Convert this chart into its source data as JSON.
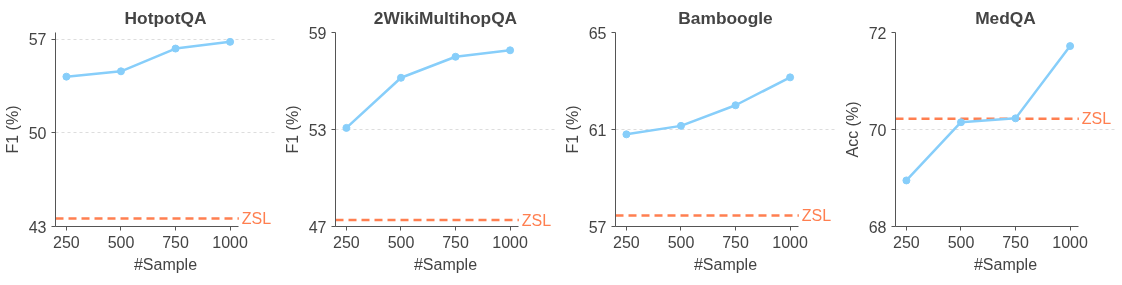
{
  "chart_data": [
    {
      "type": "line",
      "title": "HotpotQA",
      "xlabel": "#Sample",
      "ylabel": "F1 (%)",
      "x": [
        250,
        500,
        750,
        1000
      ],
      "xlim": [
        200,
        1040
      ],
      "xticks": [
        250,
        500,
        750,
        1000
      ],
      "ylim": [
        43,
        57.5
      ],
      "yticks": [
        43,
        50,
        57
      ],
      "grid": "y",
      "marker": "circle",
      "series": [
        {
          "color": "#87cefa",
          "values": [
            54.2,
            54.6,
            56.3,
            56.8
          ]
        }
      ],
      "ref_lines": [
        {
          "axis": "y",
          "value": 43.6,
          "label": "ZSL",
          "color": "#ff7f50",
          "line_style": "dashed"
        }
      ]
    },
    {
      "type": "line",
      "title": "2WikiMultihopQA",
      "xlabel": "#Sample",
      "ylabel": "F1 (%)",
      "x": [
        250,
        500,
        750,
        1000
      ],
      "xlim": [
        200,
        1040
      ],
      "xticks": [
        250,
        500,
        750,
        1000
      ],
      "ylim": [
        47,
        59
      ],
      "yticks": [
        47,
        53,
        59
      ],
      "grid": "y",
      "marker": "circle",
      "series": [
        {
          "color": "#87cefa",
          "values": [
            53.1,
            56.2,
            57.5,
            57.9
          ]
        }
      ],
      "ref_lines": [
        {
          "axis": "y",
          "value": 47.4,
          "label": "ZSL",
          "color": "#ff7f50",
          "line_style": "dashed"
        }
      ]
    },
    {
      "type": "line",
      "title": "Bamboogle",
      "xlabel": "#Sample",
      "ylabel": "F1 (%)",
      "x": [
        250,
        500,
        750,
        1000
      ],
      "xlim": [
        200,
        1040
      ],
      "xticks": [
        250,
        500,
        750,
        1000
      ],
      "ylim": [
        57,
        65
      ],
      "yticks": [
        57,
        61,
        65
      ],
      "grid": "y",
      "marker": "circle",
      "series": [
        {
          "color": "#87cefa",
          "values": [
            60.8,
            61.15,
            62.0,
            63.15
          ]
        }
      ],
      "ref_lines": [
        {
          "axis": "y",
          "value": 57.45,
          "label": "ZSL",
          "color": "#ff7f50",
          "line_style": "dashed"
        }
      ]
    },
    {
      "type": "line",
      "title": "MedQA",
      "xlabel": "#Sample",
      "ylabel": "Acc (%)",
      "x": [
        250,
        500,
        750,
        1000
      ],
      "xlim": [
        200,
        1040
      ],
      "xticks": [
        250,
        500,
        750,
        1000
      ],
      "ylim": [
        68,
        72
      ],
      "yticks": [
        68,
        70,
        72
      ],
      "grid": "y",
      "marker": "circle",
      "series": [
        {
          "color": "#87cefa",
          "values": [
            68.95,
            70.15,
            70.23,
            71.72
          ]
        }
      ],
      "ref_lines": [
        {
          "axis": "y",
          "value": 70.22,
          "label": "ZSL",
          "color": "#ff7f50",
          "line_style": "dashed"
        }
      ]
    }
  ]
}
